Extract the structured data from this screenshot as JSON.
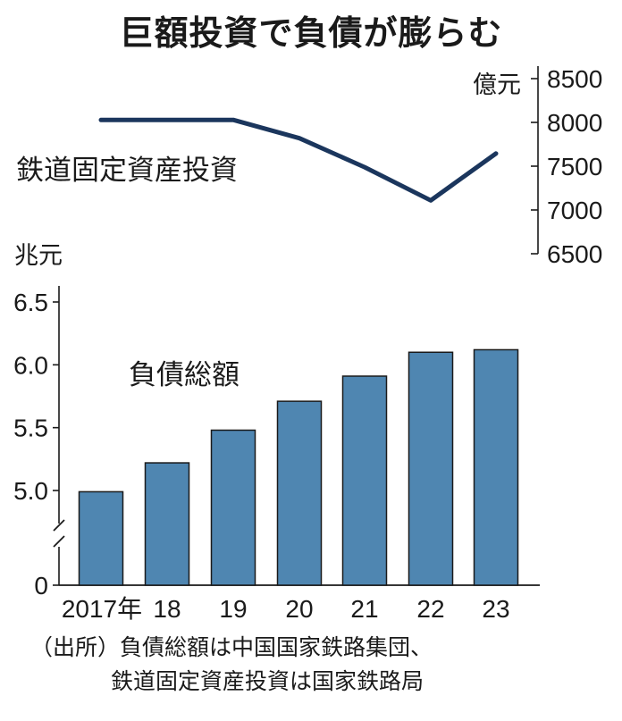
{
  "title": "巨額投資で負債が膨らむ",
  "chart_data": [
    {
      "type": "line",
      "name": "鉄道固定資産投資",
      "unit": "億元",
      "x": [
        "2017年",
        "18",
        "19",
        "20",
        "21",
        "22",
        "23"
      ],
      "values": [
        8028,
        8028,
        8029,
        7819,
        7489,
        7109,
        7645
      ],
      "ylim": [
        6500,
        8500
      ],
      "yticks": [
        8500,
        8000,
        7500,
        7000,
        6500
      ],
      "color": "#1b365d",
      "axis_side": "right"
    },
    {
      "type": "bar",
      "name": "負債総額",
      "unit": "兆元",
      "categories": [
        "2017年",
        "18",
        "19",
        "20",
        "21",
        "22",
        "23"
      ],
      "values": [
        4.99,
        5.22,
        5.48,
        5.71,
        5.91,
        6.1,
        6.12
      ],
      "ylim": [
        4.6,
        6.5
      ],
      "yticks": [
        "6.5",
        "6.0",
        "5.5",
        "5.0",
        "0"
      ],
      "axis_break": true,
      "color": "#4f86b1"
    }
  ],
  "source": {
    "line1": "（出所）負債総額は中国国家鉄路集団、",
    "line2": "鉄道固定資産投資は国家鉄路局"
  }
}
